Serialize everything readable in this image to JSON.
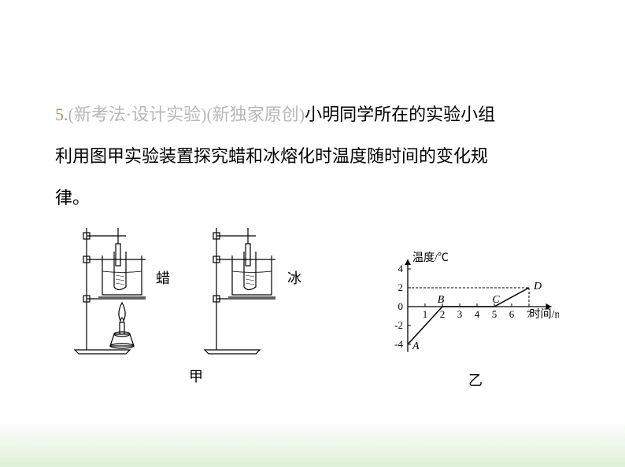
{
  "question": {
    "number": "5.",
    "tag": "(新考法·设计实验)(新独家原创)",
    "body_part1": "小明同学所在的实验小组",
    "body_line2": "利用图甲实验装置探究蜡和冰熔化时温度随时间的变化规",
    "body_line3": "律。"
  },
  "figure_left": {
    "label_wax": "蜡",
    "label_ice": "冰",
    "caption": "甲"
  },
  "figure_right": {
    "caption": "乙",
    "y_axis_label": "温度/℃",
    "x_axis_label": "时间/min",
    "y_ticks": [
      {
        "v": 4,
        "label": "4"
      },
      {
        "v": 2,
        "label": "2"
      },
      {
        "v": 0,
        "label": "0"
      },
      {
        "v": -2,
        "label": "-2"
      },
      {
        "v": -4,
        "label": "-4"
      }
    ],
    "x_ticks": [
      {
        "v": 1,
        "label": "1"
      },
      {
        "v": 2,
        "label": "2"
      },
      {
        "v": 3,
        "label": "3"
      },
      {
        "v": 4,
        "label": "4"
      },
      {
        "v": 5,
        "label": "5"
      },
      {
        "v": 6,
        "label": "6"
      },
      {
        "v": 7,
        "label": "7"
      }
    ],
    "points": {
      "A": {
        "x": 0,
        "y": -4,
        "label": "A"
      },
      "B": {
        "x": 2,
        "y": 0,
        "label": "B"
      },
      "C": {
        "x": 5,
        "y": 0,
        "label": "C"
      },
      "D": {
        "x": 7,
        "y": 2,
        "label": "D"
      }
    },
    "stroke_color": "#000000",
    "dash_color": "#000000",
    "x_range": [
      0,
      8
    ],
    "y_range": [
      -5,
      5
    ]
  },
  "colors": {
    "number": "#b0936c",
    "tag": "#b8b8b8",
    "text": "#000000",
    "background": "#ffffff"
  }
}
